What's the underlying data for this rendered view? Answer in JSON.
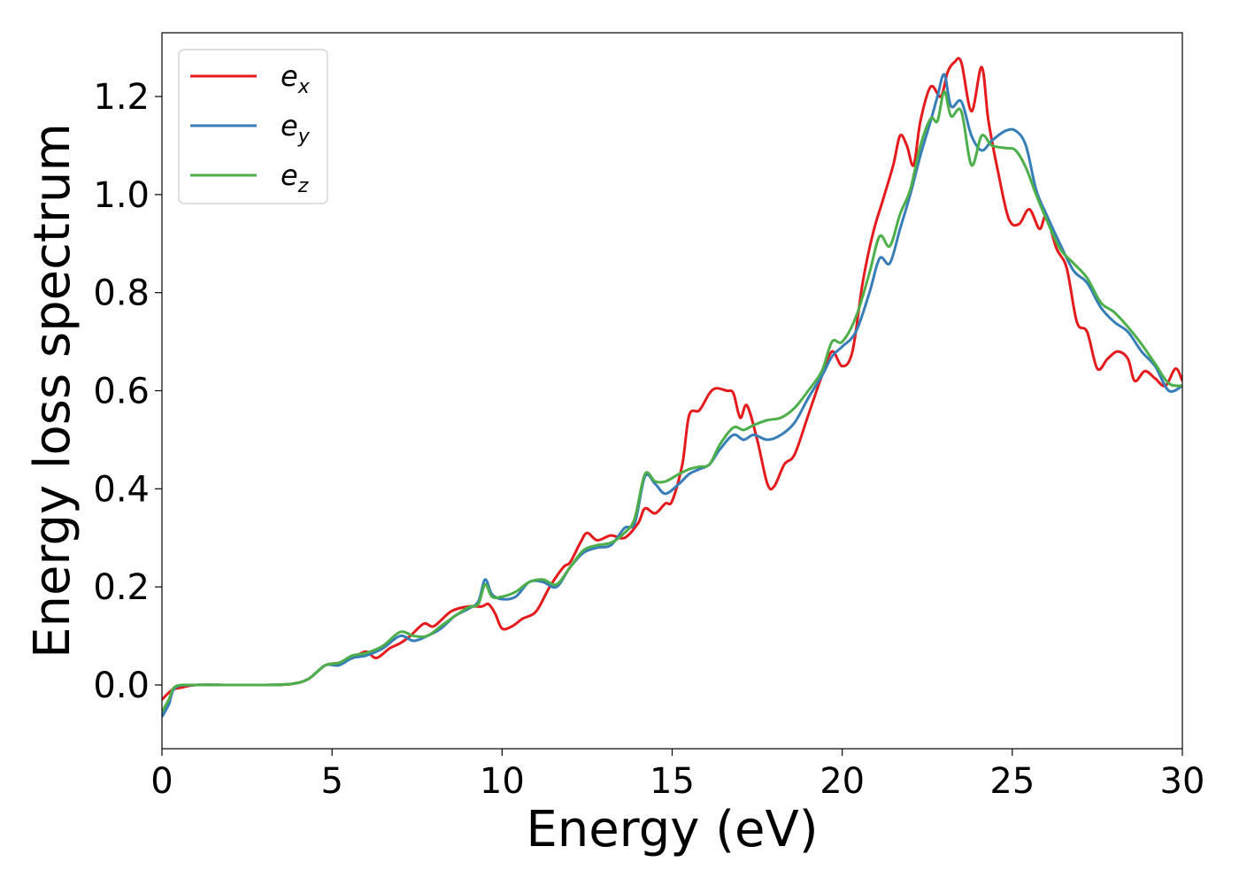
{
  "chart_data": {
    "type": "line",
    "title": "",
    "xlabel": "Energy (eV)",
    "ylabel": "Energy loss spectrum",
    "xlim": [
      0,
      30
    ],
    "ylim": [
      -0.13,
      1.33
    ],
    "xticks": [
      0,
      5,
      10,
      15,
      20,
      25,
      30
    ],
    "yticks": [
      0.0,
      0.2,
      0.4,
      0.6,
      0.8,
      1.0,
      1.2
    ],
    "grid": false,
    "legend_position": "top-left",
    "series": [
      {
        "name": "e_x",
        "label_base": "e",
        "label_sub": "x",
        "color": "#e41a1c",
        "points": [
          [
            0,
            -0.03
          ],
          [
            0.3,
            -0.01
          ],
          [
            0.6,
            -0.005
          ],
          [
            1,
            0
          ],
          [
            2,
            0
          ],
          [
            3,
            0
          ],
          [
            3.8,
            0.002
          ],
          [
            4.3,
            0.012
          ],
          [
            4.8,
            0.04
          ],
          [
            5.2,
            0.045
          ],
          [
            5.6,
            0.055
          ],
          [
            6,
            0.068
          ],
          [
            6.3,
            0.055
          ],
          [
            6.7,
            0.075
          ],
          [
            7,
            0.085
          ],
          [
            7.3,
            0.1
          ],
          [
            7.7,
            0.125
          ],
          [
            8,
            0.12
          ],
          [
            8.5,
            0.15
          ],
          [
            9,
            0.16
          ],
          [
            9.4,
            0.16
          ],
          [
            9.6,
            0.165
          ],
          [
            9.8,
            0.145
          ],
          [
            10,
            0.115
          ],
          [
            10.3,
            0.12
          ],
          [
            10.6,
            0.135
          ],
          [
            11,
            0.15
          ],
          [
            11.4,
            0.2
          ],
          [
            11.8,
            0.24
          ],
          [
            12,
            0.25
          ],
          [
            12.3,
            0.29
          ],
          [
            12.5,
            0.31
          ],
          [
            12.8,
            0.295
          ],
          [
            13.2,
            0.305
          ],
          [
            13.6,
            0.3
          ],
          [
            14,
            0.33
          ],
          [
            14.2,
            0.36
          ],
          [
            14.5,
            0.35
          ],
          [
            14.8,
            0.37
          ],
          [
            15,
            0.375
          ],
          [
            15.3,
            0.45
          ],
          [
            15.5,
            0.55
          ],
          [
            15.8,
            0.56
          ],
          [
            16.1,
            0.595
          ],
          [
            16.3,
            0.605
          ],
          [
            16.6,
            0.6
          ],
          [
            16.8,
            0.595
          ],
          [
            17,
            0.545
          ],
          [
            17.2,
            0.57
          ],
          [
            17.5,
            0.5
          ],
          [
            17.8,
            0.41
          ],
          [
            18,
            0.405
          ],
          [
            18.3,
            0.45
          ],
          [
            18.6,
            0.47
          ],
          [
            19,
            0.55
          ],
          [
            19.4,
            0.63
          ],
          [
            19.7,
            0.68
          ],
          [
            20,
            0.65
          ],
          [
            20.3,
            0.68
          ],
          [
            20.6,
            0.82
          ],
          [
            20.9,
            0.92
          ],
          [
            21.2,
            0.99
          ],
          [
            21.5,
            1.06
          ],
          [
            21.7,
            1.12
          ],
          [
            21.9,
            1.1
          ],
          [
            22.1,
            1.06
          ],
          [
            22.3,
            1.15
          ],
          [
            22.6,
            1.22
          ],
          [
            22.9,
            1.2
          ],
          [
            23.1,
            1.25
          ],
          [
            23.3,
            1.27
          ],
          [
            23.5,
            1.27
          ],
          [
            23.8,
            1.17
          ],
          [
            24.1,
            1.26
          ],
          [
            24.3,
            1.15
          ],
          [
            24.6,
            1.04
          ],
          [
            24.9,
            0.95
          ],
          [
            25.2,
            0.94
          ],
          [
            25.5,
            0.97
          ],
          [
            25.8,
            0.93
          ],
          [
            26,
            0.955
          ],
          [
            26.3,
            0.89
          ],
          [
            26.6,
            0.85
          ],
          [
            26.9,
            0.74
          ],
          [
            27.2,
            0.72
          ],
          [
            27.5,
            0.645
          ],
          [
            27.8,
            0.665
          ],
          [
            28.1,
            0.68
          ],
          [
            28.4,
            0.665
          ],
          [
            28.6,
            0.62
          ],
          [
            28.9,
            0.64
          ],
          [
            29.2,
            0.625
          ],
          [
            29.5,
            0.61
          ],
          [
            29.8,
            0.645
          ],
          [
            30,
            0.62
          ]
        ]
      },
      {
        "name": "e_y",
        "label_base": "e",
        "label_sub": "y",
        "color": "#377eb8",
        "points": [
          [
            0,
            -0.065
          ],
          [
            0.2,
            -0.04
          ],
          [
            0.4,
            -0.005
          ],
          [
            1,
            0
          ],
          [
            2,
            0
          ],
          [
            3,
            0
          ],
          [
            3.8,
            0.002
          ],
          [
            4.3,
            0.012
          ],
          [
            4.8,
            0.04
          ],
          [
            5.2,
            0.04
          ],
          [
            5.6,
            0.055
          ],
          [
            6,
            0.06
          ],
          [
            6.5,
            0.075
          ],
          [
            7,
            0.1
          ],
          [
            7.4,
            0.09
          ],
          [
            7.8,
            0.1
          ],
          [
            8.2,
            0.115
          ],
          [
            8.6,
            0.14
          ],
          [
            9,
            0.155
          ],
          [
            9.3,
            0.17
          ],
          [
            9.5,
            0.215
          ],
          [
            9.7,
            0.185
          ],
          [
            10,
            0.175
          ],
          [
            10.4,
            0.18
          ],
          [
            10.8,
            0.21
          ],
          [
            11.2,
            0.21
          ],
          [
            11.6,
            0.2
          ],
          [
            12,
            0.24
          ],
          [
            12.4,
            0.27
          ],
          [
            12.8,
            0.28
          ],
          [
            13.2,
            0.285
          ],
          [
            13.6,
            0.32
          ],
          [
            13.9,
            0.33
          ],
          [
            14.2,
            0.425
          ],
          [
            14.5,
            0.41
          ],
          [
            14.8,
            0.39
          ],
          [
            15.2,
            0.41
          ],
          [
            15.5,
            0.43
          ],
          [
            15.8,
            0.44
          ],
          [
            16.1,
            0.45
          ],
          [
            16.4,
            0.48
          ],
          [
            16.8,
            0.51
          ],
          [
            17.1,
            0.5
          ],
          [
            17.4,
            0.51
          ],
          [
            17.8,
            0.5
          ],
          [
            18.2,
            0.51
          ],
          [
            18.6,
            0.535
          ],
          [
            19,
            0.585
          ],
          [
            19.4,
            0.63
          ],
          [
            19.7,
            0.67
          ],
          [
            20,
            0.69
          ],
          [
            20.4,
            0.72
          ],
          [
            20.8,
            0.8
          ],
          [
            21.1,
            0.87
          ],
          [
            21.4,
            0.86
          ],
          [
            21.7,
            0.93
          ],
          [
            22,
            1.0
          ],
          [
            22.3,
            1.08
          ],
          [
            22.6,
            1.15
          ],
          [
            22.8,
            1.2
          ],
          [
            23,
            1.245
          ],
          [
            23.2,
            1.18
          ],
          [
            23.5,
            1.19
          ],
          [
            23.8,
            1.12
          ],
          [
            24.1,
            1.09
          ],
          [
            24.4,
            1.11
          ],
          [
            24.8,
            1.13
          ],
          [
            25.1,
            1.13
          ],
          [
            25.4,
            1.1
          ],
          [
            25.7,
            1.01
          ],
          [
            26,
            0.96
          ],
          [
            26.4,
            0.9
          ],
          [
            26.8,
            0.845
          ],
          [
            27.2,
            0.82
          ],
          [
            27.6,
            0.77
          ],
          [
            28,
            0.74
          ],
          [
            28.4,
            0.72
          ],
          [
            28.8,
            0.68
          ],
          [
            29.2,
            0.65
          ],
          [
            29.6,
            0.6
          ],
          [
            30,
            0.61
          ]
        ]
      },
      {
        "name": "e_z",
        "label_base": "e",
        "label_sub": "z",
        "color": "#4daf4a",
        "points": [
          [
            0,
            -0.055
          ],
          [
            0.2,
            -0.03
          ],
          [
            0.4,
            -0.003
          ],
          [
            1,
            0
          ],
          [
            2,
            0
          ],
          [
            3,
            0
          ],
          [
            3.8,
            0.002
          ],
          [
            4.3,
            0.012
          ],
          [
            4.8,
            0.04
          ],
          [
            5.2,
            0.045
          ],
          [
            5.6,
            0.06
          ],
          [
            6,
            0.065
          ],
          [
            6.5,
            0.08
          ],
          [
            7,
            0.108
          ],
          [
            7.4,
            0.1
          ],
          [
            7.8,
            0.1
          ],
          [
            8.2,
            0.12
          ],
          [
            8.6,
            0.14
          ],
          [
            9,
            0.158
          ],
          [
            9.3,
            0.165
          ],
          [
            9.5,
            0.205
          ],
          [
            9.7,
            0.18
          ],
          [
            10,
            0.18
          ],
          [
            10.4,
            0.19
          ],
          [
            10.8,
            0.21
          ],
          [
            11.2,
            0.215
          ],
          [
            11.6,
            0.205
          ],
          [
            12,
            0.24
          ],
          [
            12.4,
            0.275
          ],
          [
            12.8,
            0.285
          ],
          [
            13.2,
            0.29
          ],
          [
            13.6,
            0.31
          ],
          [
            13.9,
            0.34
          ],
          [
            14.2,
            0.43
          ],
          [
            14.5,
            0.415
          ],
          [
            14.8,
            0.415
          ],
          [
            15.2,
            0.43
          ],
          [
            15.5,
            0.44
          ],
          [
            15.8,
            0.445
          ],
          [
            16.1,
            0.45
          ],
          [
            16.4,
            0.49
          ],
          [
            16.8,
            0.525
          ],
          [
            17.1,
            0.52
          ],
          [
            17.4,
            0.53
          ],
          [
            17.8,
            0.54
          ],
          [
            18.2,
            0.545
          ],
          [
            18.6,
            0.565
          ],
          [
            19,
            0.6
          ],
          [
            19.4,
            0.64
          ],
          [
            19.7,
            0.7
          ],
          [
            20,
            0.7
          ],
          [
            20.4,
            0.75
          ],
          [
            20.8,
            0.84
          ],
          [
            21.1,
            0.915
          ],
          [
            21.4,
            0.895
          ],
          [
            21.7,
            0.96
          ],
          [
            22,
            1.01
          ],
          [
            22.3,
            1.1
          ],
          [
            22.6,
            1.155
          ],
          [
            22.8,
            1.15
          ],
          [
            23,
            1.21
          ],
          [
            23.2,
            1.16
          ],
          [
            23.5,
            1.17
          ],
          [
            23.8,
            1.06
          ],
          [
            24.1,
            1.12
          ],
          [
            24.4,
            1.1
          ],
          [
            24.8,
            1.095
          ],
          [
            25.1,
            1.09
          ],
          [
            25.4,
            1.055
          ],
          [
            25.7,
            1.0
          ],
          [
            26,
            0.95
          ],
          [
            26.4,
            0.89
          ],
          [
            26.8,
            0.86
          ],
          [
            27.2,
            0.83
          ],
          [
            27.6,
            0.78
          ],
          [
            28,
            0.76
          ],
          [
            28.4,
            0.73
          ],
          [
            28.8,
            0.695
          ],
          [
            29.2,
            0.655
          ],
          [
            29.6,
            0.615
          ],
          [
            30,
            0.61
          ]
        ]
      }
    ]
  }
}
